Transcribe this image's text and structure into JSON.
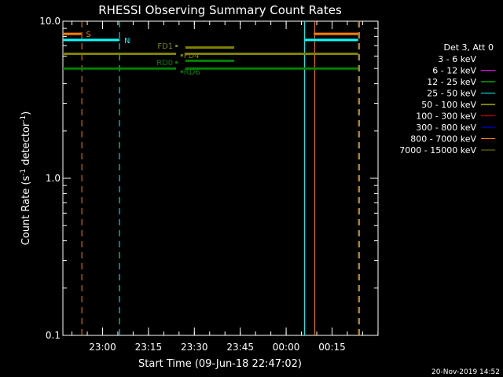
{
  "chart_data": {
    "type": "line",
    "title": "RHESSI Observing Summary Count Rates",
    "xlabel": "Start Time (09-Jun-18 22:47:02)",
    "ylabel": "Count Rate (s",
    "ylabel_sup1": "-1",
    "ylabel_mid": " detector",
    "ylabel_sup2": "-1",
    "ylabel_end": ")",
    "yscale": "log",
    "ylim": [
      0.1,
      10.0
    ],
    "xlim_minutes": [
      0,
      103
    ],
    "x_ticks": [
      {
        "minute": 12.97,
        "label": "23:00"
      },
      {
        "minute": 27.97,
        "label": "23:15"
      },
      {
        "minute": 42.97,
        "label": "23:30"
      },
      {
        "minute": 57.97,
        "label": "23:45"
      },
      {
        "minute": 72.97,
        "label": "00:00"
      },
      {
        "minute": 87.97,
        "label": "00:15"
      }
    ],
    "y_ticks": [
      {
        "value": 10.0,
        "label": "10.0"
      },
      {
        "value": 1.0,
        "label": "1.0"
      },
      {
        "value": 0.1,
        "label": "0.1"
      }
    ],
    "legend": {
      "placement": "right",
      "header": "Det 3, Att 0",
      "entries": [
        {
          "name": "3 - 6 keV",
          "color": "#000000"
        },
        {
          "name": "6 - 12 keV",
          "color": "#ff00ff"
        },
        {
          "name": "12 - 25 keV",
          "color": "#00ff00"
        },
        {
          "name": "25 - 50 keV",
          "color": "#00ffff"
        },
        {
          "name": "50 - 100 keV",
          "color": "#ffff00"
        },
        {
          "name": "100 - 300 keV",
          "color": "#ff0000"
        },
        {
          "name": "300 - 800 keV",
          "color": "#0000ff"
        },
        {
          "name": "800 - 7000 keV",
          "color": "#ff8000"
        },
        {
          "name": "7000 - 15000 keV",
          "color": "#808000"
        }
      ]
    },
    "series": [
      {
        "color": "#808000",
        "segments": [
          {
            "x": [
              0,
              37
            ],
            "y": 6.2
          },
          {
            "x": [
              40,
              56
            ],
            "y": 6.2
          },
          {
            "x": [
              56,
              96.5
            ],
            "y": 6.2
          }
        ]
      },
      {
        "color": "#008000",
        "segments": [
          {
            "x": [
              0,
              37
            ],
            "y": 5.0
          },
          {
            "x": [
              40,
              56
            ],
            "y": 5.0
          },
          {
            "x": [
              56,
              96.5
            ],
            "y": 5.0
          }
        ]
      },
      {
        "color": "#808000",
        "segments": [
          {
            "x": [
              40,
              56
            ],
            "y": 6.8
          }
        ]
      },
      {
        "color": "#008000",
        "segments": [
          {
            "x": [
              40,
              56
            ],
            "y": 5.6
          }
        ]
      }
    ],
    "flags": [
      {
        "label": "S",
        "color": "#ff8000",
        "y": 8.3,
        "segments": [
          [
            0,
            6
          ]
        ]
      },
      {
        "label": "N",
        "color": "#00ffff",
        "y": 7.6,
        "segments": [
          [
            0,
            18.5
          ]
        ]
      },
      {
        "color": "#ff8000",
        "y": 8.3,
        "segments": [
          [
            82,
            96.5
          ]
        ]
      },
      {
        "color": "#00ffff",
        "y": 7.6,
        "segments": [
          [
            79,
            96.5
          ]
        ]
      }
    ],
    "vlines": [
      {
        "x": 6.2,
        "color": "#ff8000",
        "style": "dashed"
      },
      {
        "x": 18.5,
        "color": "#00ffff",
        "style": "dashed"
      },
      {
        "x": 79.0,
        "color": "#00ffff",
        "style": "solid"
      },
      {
        "x": 82.3,
        "color": "#ff8000",
        "style": "solid"
      },
      {
        "x": 96.6,
        "color": "#ff8000",
        "style": "dashed"
      },
      {
        "x": 96.9,
        "color": "#00ffff",
        "style": "dashed"
      }
    ],
    "annotations": [
      {
        "label": "FD1",
        "color": "#808000",
        "x": 36,
        "y": 7.0,
        "anchor": "end"
      },
      {
        "label": "FD4",
        "color": "#808000",
        "x": 39.5,
        "y": 6.1,
        "anchor": "start"
      },
      {
        "label": "RD0",
        "color": "#008000",
        "x": 36,
        "y": 5.5,
        "anchor": "end"
      },
      {
        "label": "RD6",
        "color": "#008000",
        "x": 39.5,
        "y": 4.8,
        "anchor": "start"
      }
    ],
    "grid": false
  },
  "footer": {
    "timestamp": "20-Nov-2019 14:52"
  }
}
